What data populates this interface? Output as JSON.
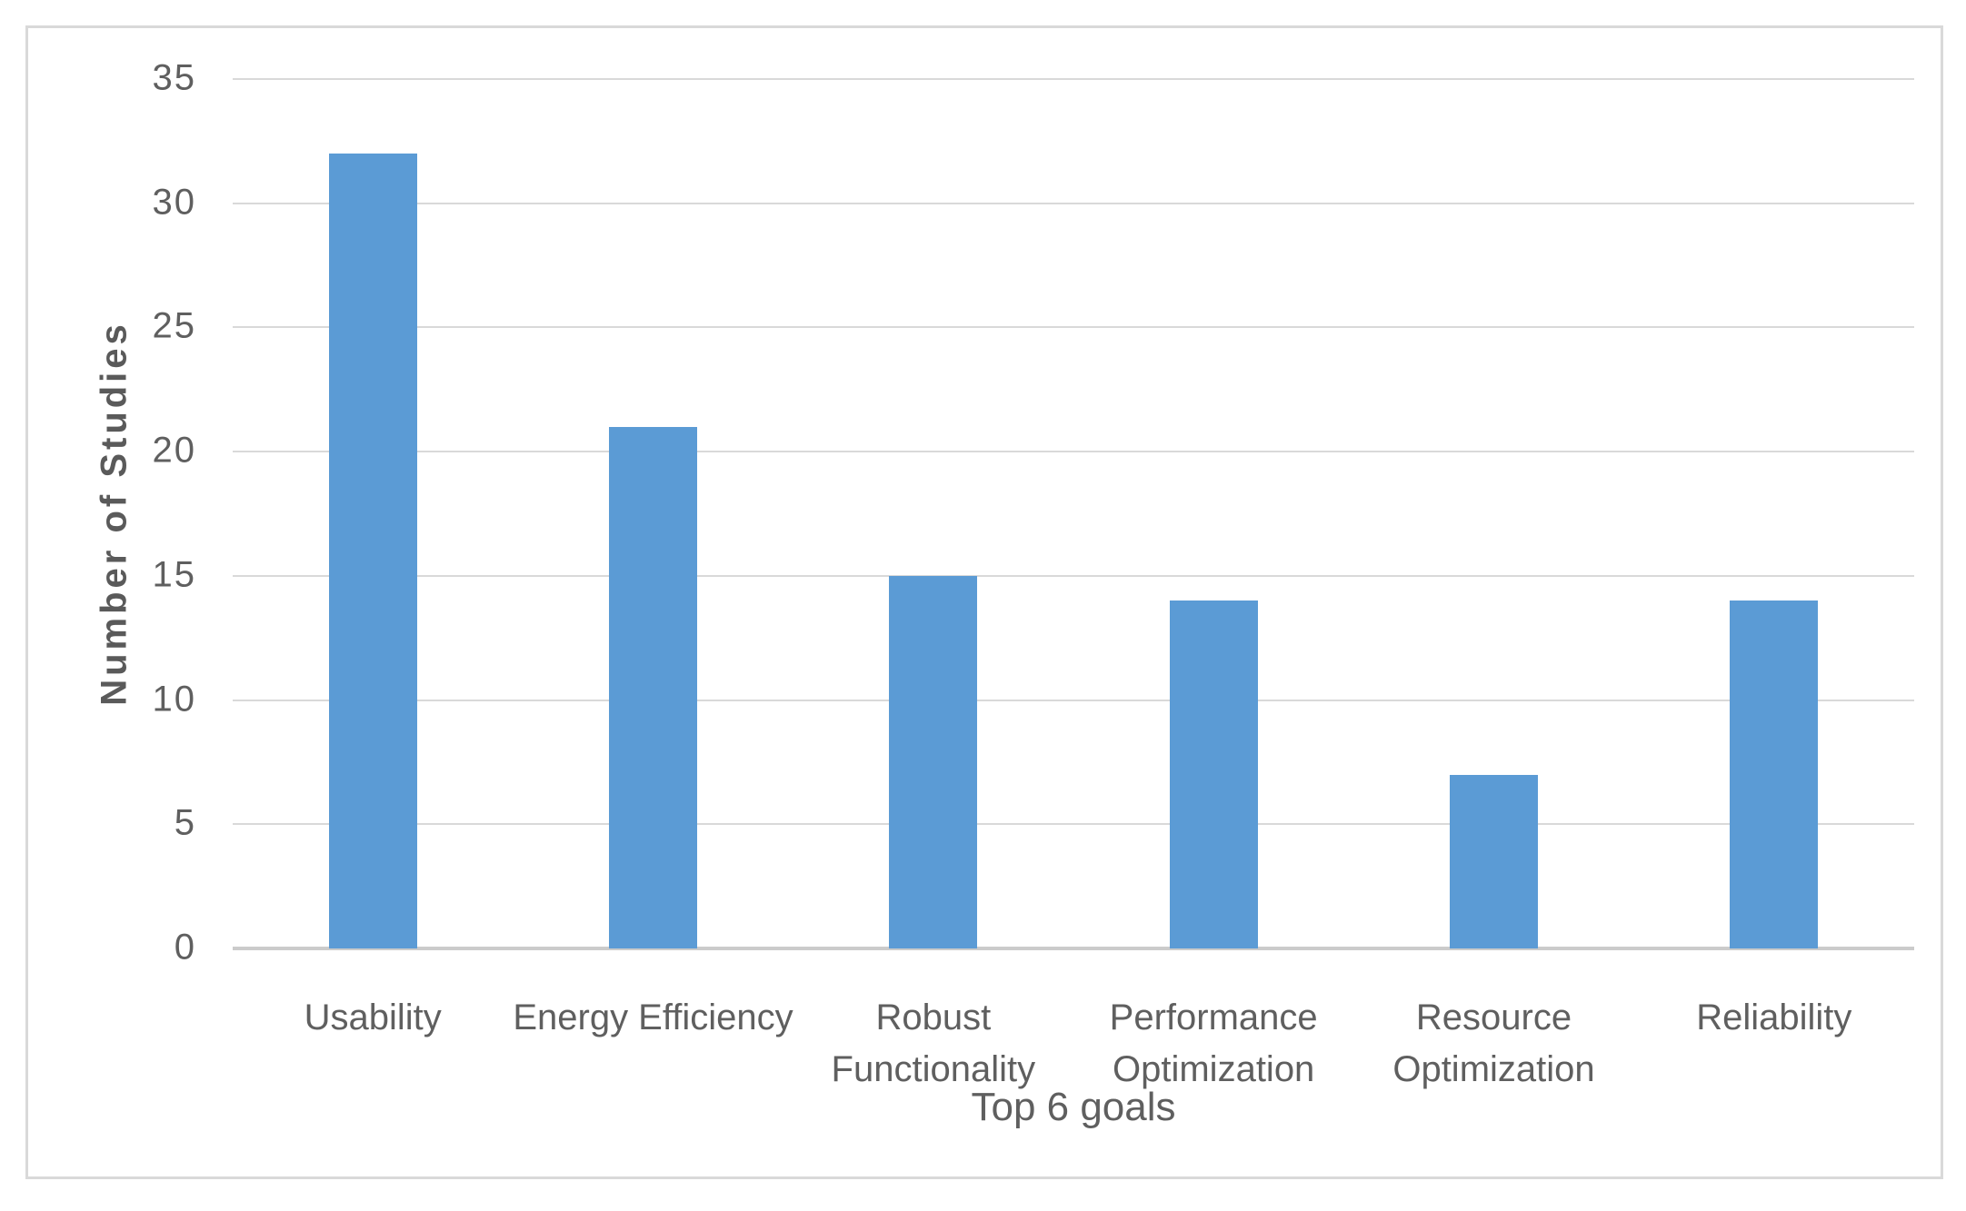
{
  "figure": {
    "background_color": "#ffffff",
    "border_color": "#d9d9d9",
    "text_color": "#5f5f5f"
  },
  "chart_data": {
    "type": "bar",
    "title": "",
    "categories": [
      "Usability",
      "Energy Efficiency",
      "Robust Functionality",
      "Performance Optimization",
      "Resource Optimization",
      "Reliability"
    ],
    "values": [
      32,
      21,
      15,
      14,
      7,
      14
    ],
    "xlabel": "Top 6 goals",
    "ylabel": "Number of Studies",
    "ylim": [
      0,
      35
    ],
    "yticks": [
      0,
      5,
      10,
      15,
      20,
      25,
      30,
      35
    ],
    "grid": true,
    "legend_position": "none",
    "bar_color": "#5b9bd5",
    "gridline_color": "#d9d9d9",
    "axis_line_color": "#cbcbcb"
  }
}
